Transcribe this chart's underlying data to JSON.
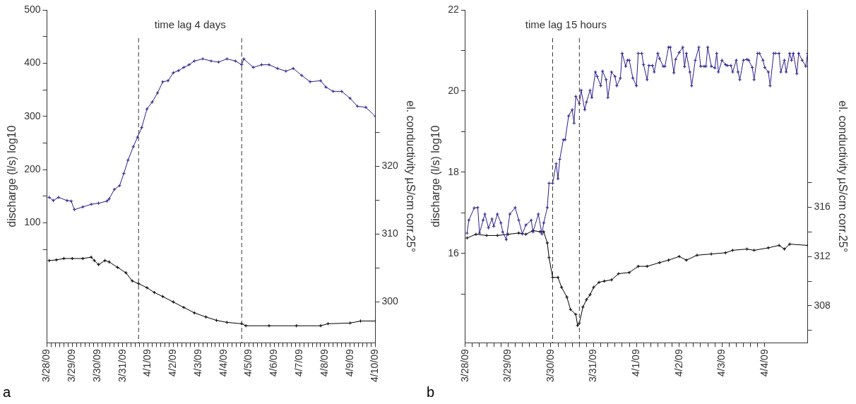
{
  "chart_data": [
    {
      "type": "line",
      "title": "a",
      "ylabel": "discharge (l/s) log10",
      "y2label": "el. conductivity µS/cm corr.25°",
      "annotations": [
        "time lag 4 days"
      ],
      "marker": "cross",
      "xlim": [
        "--03-28",
        "--04-10"
      ],
      "xticks": [
        {
          "value": "--03-28",
          "label": "3/28/09"
        },
        {
          "value": "--03-28T04:00",
          "label": null
        },
        {
          "value": "--03-28T08:00",
          "label": null
        },
        {
          "value": "--03-28T12:00",
          "label": null
        },
        {
          "value": "--03-28T16:00",
          "label": null
        },
        {
          "value": "--03-28T20:00",
          "label": null
        },
        {
          "value": "--03-29",
          "label": "3/29/09"
        },
        {
          "value": "--03-29T04:00",
          "label": null
        },
        {
          "value": "--03-29T08:00",
          "label": null
        },
        {
          "value": "--03-29T12:00",
          "label": null
        },
        {
          "value": "--03-29T16:00",
          "label": null
        },
        {
          "value": "--03-29T20:00",
          "label": null
        },
        {
          "value": "--03-30",
          "label": "3/30/09"
        },
        {
          "value": "--03-30T04:00",
          "label": null
        },
        {
          "value": "--03-30T08:00",
          "label": null
        },
        {
          "value": "--03-30T12:00",
          "label": null
        },
        {
          "value": "--03-30T16:00",
          "label": null
        },
        {
          "value": "--03-30T20:00",
          "label": null
        },
        {
          "value": "--03-31",
          "label": "3/31/09"
        },
        {
          "value": "--03-31T04:00",
          "label": null
        },
        {
          "value": "--03-31T08:00",
          "label": null
        },
        {
          "value": "--03-31T12:00",
          "label": null
        },
        {
          "value": "--03-31T16:00",
          "label": null
        },
        {
          "value": "--03-31T20:00",
          "label": null
        },
        {
          "value": "--04-01",
          "label": "4/1/09"
        },
        {
          "value": "--04-01T04:00",
          "label": null
        },
        {
          "value": "--04-01T08:00",
          "label": null
        },
        {
          "value": "--04-01T12:00",
          "label": null
        },
        {
          "value": "--04-01T16:00",
          "label": null
        },
        {
          "value": "--04-01T20:00",
          "label": null
        },
        {
          "value": "--04-02",
          "label": "4/2/09"
        },
        {
          "value": "--04-02T04:00",
          "label": null
        },
        {
          "value": "--04-02T08:00",
          "label": null
        },
        {
          "value": "--04-02T12:00",
          "label": null
        },
        {
          "value": "--04-02T16:00",
          "label": null
        },
        {
          "value": "--04-02T20:00",
          "label": null
        },
        {
          "value": "--04-03",
          "label": "4/3/09"
        },
        {
          "value": "--04-03T04:00",
          "label": null
        },
        {
          "value": "--04-03T08:00",
          "label": null
        },
        {
          "value": "--04-03T12:00",
          "label": null
        },
        {
          "value": "--04-03T16:00",
          "label": null
        },
        {
          "value": "--04-03T20:00",
          "label": null
        },
        {
          "value": "--04-04",
          "label": "4/4/09"
        },
        {
          "value": "--04-04T04:00",
          "label": null
        },
        {
          "value": "--04-04T08:00",
          "label": null
        },
        {
          "value": "--04-04T12:00",
          "label": null
        },
        {
          "value": "--04-04T16:00",
          "label": null
        },
        {
          "value": "--04-04T20:00",
          "label": null
        },
        {
          "value": "--04-05",
          "label": "4/5/09"
        },
        {
          "value": "--04-05T04:00",
          "label": null
        },
        {
          "value": "--04-05T08:00",
          "label": null
        },
        {
          "value": "--04-05T12:00",
          "label": null
        },
        {
          "value": "--04-05T16:00",
          "label": null
        },
        {
          "value": "--04-05T20:00",
          "label": null
        },
        {
          "value": "--04-06",
          "label": "4/6/09"
        },
        {
          "value": "--04-06T04:00",
          "label": null
        },
        {
          "value": "--04-06T08:00",
          "label": null
        },
        {
          "value": "--04-06T12:00",
          "label": null
        },
        {
          "value": "--04-06T16:00",
          "label": null
        },
        {
          "value": "--04-06T20:00",
          "label": null
        },
        {
          "value": "--04-07",
          "label": "4/7/09"
        },
        {
          "value": "--04-07T04:00",
          "label": null
        },
        {
          "value": "--04-07T08:00",
          "label": null
        },
        {
          "value": "--04-07T12:00",
          "label": null
        },
        {
          "value": "--04-07T16:00",
          "label": null
        },
        {
          "value": "--04-07T20:00",
          "label": null
        },
        {
          "value": "--04-08",
          "label": "4/8/09"
        },
        {
          "value": "--04-08T04:00",
          "label": null
        },
        {
          "value": "--04-08T08:00",
          "label": null
        },
        {
          "value": "--04-08T12:00",
          "label": null
        },
        {
          "value": "--04-08T16:00",
          "label": null
        },
        {
          "value": "--04-08T20:00",
          "label": null
        },
        {
          "value": "--04-09",
          "label": "4/9/09"
        },
        {
          "value": "--04-09T04:00",
          "label": null
        },
        {
          "value": "--04-09T08:00",
          "label": null
        },
        {
          "value": "--04-09T12:00",
          "label": null
        },
        {
          "value": "--04-09T16:00",
          "label": null
        },
        {
          "value": "--04-09T20:00",
          "label": null
        },
        {
          "value": "--04-10",
          "label": "4/10/09"
        }
      ],
      "ylim": [
        -125,
        500
      ],
      "yticks": [
        {
          "value": 50,
          "label": null
        },
        100,
        {
          "value": 150,
          "label": null
        },
        200,
        {
          "value": 250,
          "label": null
        },
        300,
        {
          "value": 350,
          "label": null
        },
        400,
        {
          "value": 450,
          "label": null
        },
        500
      ],
      "y2lim": [
        294,
        343
      ],
      "y2ticks": [
        300,
        {
          "value": 305,
          "label": null
        },
        310,
        {
          "value": 315,
          "label": null
        },
        320,
        {
          "value": 325,
          "label": null
        }
      ],
      "ref_lines": [
        {
          "axis": "x",
          "value": "--03-31T15:00",
          "color": "#333333",
          "line_style": "dashed"
        },
        {
          "axis": "x",
          "value": "--04-04T17:00",
          "color": "#333333",
          "line_style": "dashed"
        }
      ],
      "series": [
        {
          "color": "#2b1f8f",
          "x": [
            "--03-28T02:00",
            "--03-28T06:00",
            "--03-28T11:00",
            "--03-28T19:00",
            "--03-28T23:00",
            "--03-29T02:00",
            "--03-29T10:00",
            "--03-29T18:00",
            "--03-30T01:00",
            "--03-30T09:00",
            "--03-30T11:00",
            "--03-30T16:00",
            "--03-30T21:00",
            "--03-31T01:00",
            "--03-31T05:00",
            "--03-31T10:00",
            "--03-31T14:00",
            "--03-31T18:00",
            "--03-31T23:00",
            "--04-01T04:00",
            "--04-01T09:00",
            "--04-01T14:00",
            "--04-01T19:00",
            "--04-02T00:00",
            "--04-02T05:00",
            "--04-02T10:00",
            "--04-02T15:00",
            "--04-02T20:00",
            "--04-03T04:00",
            "--04-03T12:00",
            "--04-03T19:00",
            "--04-04T03:00",
            "--04-04T11:00",
            "--04-04T17:00",
            "--04-04T19:00",
            "--04-05T04:00",
            "--04-05T12:00",
            "--04-05T19:00",
            "--04-06T03:00",
            "--04-06T11:00",
            "--04-06T18:00",
            "--04-07T02:00",
            "--04-07T10:00",
            "--04-07T20:00",
            "--04-08T01:00",
            "--04-08T08:00",
            "--04-08T16:00",
            "--04-09T00:00",
            "--04-09T07:00",
            "--04-09T15:00",
            "--04-10T00:00"
          ],
          "values": [
            148,
            142,
            148,
            142,
            141,
            125,
            130,
            135,
            137,
            141,
            145,
            163,
            170,
            193,
            218,
            243,
            261,
            279,
            314,
            327,
            344,
            365,
            367,
            382,
            386,
            392,
            397,
            404,
            408,
            404,
            402,
            408,
            404,
            397,
            408,
            392,
            397,
            397,
            390,
            385,
            390,
            377,
            365,
            367,
            355,
            347,
            347,
            334,
            319,
            317,
            300
          ]
        },
        {
          "color": "#000000",
          "axis": "y2",
          "x": [
            "--03-28T02:00",
            "--03-28T09:00",
            "--03-28T16:00",
            "--03-29T00:00",
            "--03-29T10:00",
            "--03-29T18:00",
            "--03-29T21:00",
            "--03-30T01:00",
            "--03-30T07:00",
            "--03-30T11:00",
            "--03-30T19:00",
            "--03-31T03:00",
            "--03-31T09:00",
            "--03-31T15:00",
            "--03-31T23:00",
            "--04-01T06:00",
            "--04-01T14:00",
            "--04-02T00:00",
            "--04-02T10:00",
            "--04-02T20:00",
            "--04-03T07:00",
            "--04-03T17:00",
            "--04-04T03:00",
            "--04-04T17:00",
            "--04-04T21:00",
            "--04-05T19:00",
            "--04-06T21:00",
            "--04-07T20:00",
            "--04-08T03:00",
            "--04-09T00:00",
            "--04-09T10:00",
            "--04-10T00:00"
          ],
          "values": [
            306.1,
            306.2,
            306.4,
            306.4,
            306.4,
            306.6,
            306.1,
            305.5,
            306.1,
            305.9,
            305.1,
            304.3,
            303.1,
            302.7,
            302.1,
            301.4,
            300.8,
            300.0,
            299.2,
            298.4,
            297.8,
            297.3,
            297.0,
            296.8,
            296.5,
            296.5,
            296.5,
            296.5,
            296.8,
            296.9,
            297.2,
            297.2
          ]
        }
      ]
    },
    {
      "type": "line",
      "title": "b",
      "ylabel": "discharge (l/s) log10",
      "y2label": "el. conductivity µS/cm corr.25°",
      "annotations": [
        "time lag 15 hours"
      ],
      "marker": "cross",
      "xlim": [
        "--03-28",
        "--04-05"
      ],
      "xticks": [
        {
          "value": "--03-28",
          "label": "3/28/09"
        },
        {
          "value": "--03-28T04:00",
          "label": null
        },
        {
          "value": "--03-28T08:00",
          "label": null
        },
        {
          "value": "--03-28T12:00",
          "label": null
        },
        {
          "value": "--03-28T16:00",
          "label": null
        },
        {
          "value": "--03-28T20:00",
          "label": null
        },
        {
          "value": "--03-29",
          "label": "3/29/09"
        },
        {
          "value": "--03-29T04:00",
          "label": null
        },
        {
          "value": "--03-29T08:00",
          "label": null
        },
        {
          "value": "--03-29T12:00",
          "label": null
        },
        {
          "value": "--03-29T16:00",
          "label": null
        },
        {
          "value": "--03-29T20:00",
          "label": null
        },
        {
          "value": "--03-30",
          "label": "3/30/09"
        },
        {
          "value": "--03-30T04:00",
          "label": null
        },
        {
          "value": "--03-30T08:00",
          "label": null
        },
        {
          "value": "--03-30T12:00",
          "label": null
        },
        {
          "value": "--03-30T16:00",
          "label": null
        },
        {
          "value": "--03-30T20:00",
          "label": null
        },
        {
          "value": "--03-31",
          "label": "3/31/09"
        },
        {
          "value": "--03-31T04:00",
          "label": null
        },
        {
          "value": "--03-31T08:00",
          "label": null
        },
        {
          "value": "--03-31T12:00",
          "label": null
        },
        {
          "value": "--03-31T16:00",
          "label": null
        },
        {
          "value": "--03-31T20:00",
          "label": null
        },
        {
          "value": "--04-01",
          "label": "4/1/09"
        },
        {
          "value": "--04-01T04:00",
          "label": null
        },
        {
          "value": "--04-01T08:00",
          "label": null
        },
        {
          "value": "--04-01T12:00",
          "label": null
        },
        {
          "value": "--04-01T16:00",
          "label": null
        },
        {
          "value": "--04-01T20:00",
          "label": null
        },
        {
          "value": "--04-02",
          "label": "4/2/09"
        },
        {
          "value": "--04-02T04:00",
          "label": null
        },
        {
          "value": "--04-02T08:00",
          "label": null
        },
        {
          "value": "--04-02T12:00",
          "label": null
        },
        {
          "value": "--04-02T16:00",
          "label": null
        },
        {
          "value": "--04-02T20:00",
          "label": null
        },
        {
          "value": "--04-03",
          "label": "4/3/09"
        },
        {
          "value": "--04-03T04:00",
          "label": null
        },
        {
          "value": "--04-03T08:00",
          "label": null
        },
        {
          "value": "--04-03T12:00",
          "label": null
        },
        {
          "value": "--04-03T16:00",
          "label": null
        },
        {
          "value": "--04-03T20:00",
          "label": null
        },
        {
          "value": "--04-04",
          "label": "4/4/09"
        }
      ],
      "ylim": [
        13.8,
        22
      ],
      "yticks": [
        {
          "value": 15,
          "label": null
        },
        16,
        {
          "value": 17,
          "label": null
        },
        18,
        {
          "value": 19,
          "label": null
        },
        20,
        {
          "value": 21,
          "label": null
        },
        22
      ],
      "y2lim": [
        305,
        332
      ],
      "y2ticks": [
        {
          "value": 306,
          "label": null
        },
        308,
        {
          "value": 310,
          "label": null
        },
        312,
        {
          "value": 314,
          "label": null
        },
        316,
        {
          "value": 318,
          "label": null
        }
      ],
      "ref_lines": [
        {
          "axis": "x",
          "value": "--03-30T01:00",
          "color": "#333333",
          "line_style": "dashed"
        },
        {
          "axis": "x",
          "value": "--03-30T16:00",
          "color": "#333333",
          "line_style": "dashed"
        }
      ],
      "series": [
        {
          "color": "#2b1f8f",
          "x": [
            "--03-28T01:00",
            "--03-28T02:00",
            "--03-28T05:00",
            "--03-28T07:00",
            "--03-28T08:00",
            "--03-28T10:00",
            "--03-28T11:00",
            "--03-28T13:00",
            "--03-28T15:00",
            "--03-28T16:00",
            "--03-28T18:00",
            "--03-28T20:00",
            "--03-28T21:00",
            "--03-28T23:00",
            "--03-29T01:00",
            "--03-29T04:00",
            "--03-29T06:00",
            "--03-29T08:00",
            "--03-29T10:00",
            "--03-29T13:00",
            "--03-29T14:00",
            "--03-29T17:00",
            "--03-29T19:00",
            "--03-29T20:00",
            "--03-29T22:00",
            "--03-29T23:00",
            "--03-30T01:00",
            "--03-30T03:00",
            "--03-30T04:00",
            "--03-30T05:00",
            "--03-30T07:00",
            "--03-30T08:00",
            "--03-30T10:00",
            "--03-30T12:00",
            "--03-30T13:00",
            "--03-30T14:00",
            "--03-30T16:00",
            "--03-30T17:00",
            "--03-30T19:00",
            "--03-30T20:00",
            "--03-30T22:00",
            "--03-30T23:00",
            "--03-31T01:00",
            "--03-31T02:00",
            "--03-31T04:00",
            "--03-31T05:00",
            "--03-31T07:00",
            "--03-31T08:00",
            "--03-31T10:00",
            "--03-31T12:00",
            "--03-31T13:00",
            "--03-31T15:00",
            "--03-31T16:00",
            "--03-31T18:00",
            "--03-31T19:00",
            "--03-31T20:00",
            "--03-31T22:00",
            "--04-01T00:00",
            "--04-01T01:00",
            "--04-01T03:00",
            "--04-01T04:00",
            "--04-01T06:00",
            "--04-01T07:00",
            "--04-01T09:00",
            "--04-01T10:00",
            "--04-01T12:00",
            "--04-01T13:00",
            "--04-01T15:00",
            "--04-01T16:00",
            "--04-01T18:00",
            "--04-01T19:00",
            "--04-01T21:00",
            "--04-01T22:00",
            "--04-02T00:00",
            "--04-02T02:00",
            "--04-02T03:00",
            "--04-02T04:00",
            "--04-02T06:00",
            "--04-02T07:00",
            "--04-02T09:00",
            "--04-02T11:00",
            "--04-02T12:00",
            "--04-02T14:00",
            "--04-02T15:00",
            "--04-02T16:00",
            "--04-02T18:00",
            "--04-02T20:00",
            "--04-02T21:00",
            "--04-02T22:00",
            "--04-03T00:00",
            "--04-03T02:00",
            "--04-03T03:00",
            "--04-03T05:00",
            "--04-03T06:00",
            "--04-03T08:00",
            "--04-03T09:00",
            "--04-03T10:00",
            "--04-03T12:00",
            "--04-03T14:00",
            "--04-03T15:00",
            "--04-03T17:00",
            "--04-03T18:00",
            "--04-03T20:00",
            "--04-03T21:00",
            "--04-03T23:00",
            "--04-04T00:00",
            "--04-04T02:00",
            "--04-04T03:00",
            "--04-04T05:00",
            "--04-04T06:00",
            "--04-04T08:00",
            "--04-04T09:00",
            "--04-04T11:00",
            "--04-04T12:00",
            "--04-04T14:00",
            "--04-04T15:00",
            "--04-04T16:00",
            "--04-04T18:00",
            "--04-04T19:00",
            "--04-04T21:00",
            "--04-04T23:00",
            "--04-05T00:00"
          ],
          "values": [
            16.5,
            16.82,
            17.12,
            17.13,
            16.5,
            16.82,
            16.97,
            16.63,
            16.85,
            16.67,
            16.97,
            16.75,
            16.53,
            16.34,
            16.97,
            17.13,
            16.82,
            16.48,
            16.7,
            16.82,
            16.53,
            16.97,
            16.48,
            16.75,
            17.13,
            17.73,
            17.73,
            18.21,
            17.84,
            18.32,
            18.8,
            18.8,
            19.39,
            19.54,
            19.21,
            19.87,
            19.69,
            20.02,
            19.54,
            19.73,
            20.02,
            19.84,
            20.47,
            20.36,
            20.13,
            20.49,
            20.28,
            19.84,
            20.47,
            20.36,
            20.13,
            20.32,
            20.93,
            20.61,
            20.76,
            20.76,
            20.32,
            20.13,
            20.93,
            20.93,
            20.65,
            20.28,
            20.63,
            20.63,
            20.47,
            20.93,
            20.8,
            20.61,
            20.61,
            21.08,
            21.08,
            20.45,
            20.78,
            20.95,
            21.08,
            20.6,
            20.93,
            20.47,
            20.13,
            20.76,
            21.08,
            20.61,
            20.61,
            20.61,
            21.08,
            20.61,
            20.57,
            20.93,
            20.47,
            20.76,
            20.65,
            20.63,
            20.63,
            20.47,
            20.76,
            20.47,
            20.28,
            20.76,
            20.78,
            20.76,
            20.58,
            20.28,
            20.93,
            20.93,
            20.76,
            20.58,
            20.47,
            20.13,
            20.93,
            20.93,
            20.93,
            20.47,
            20.76,
            20.47,
            20.93,
            20.76,
            20.93,
            20.43,
            20.93,
            20.76,
            20.61,
            20.93
          ]
        },
        {
          "color": "#000000",
          "axis": "y2",
          "x": [
            "--03-28T01:00",
            "--03-28T06:00",
            "--03-28T12:00",
            "--03-28T18:00",
            "--03-29T00:00",
            "--03-29T06:00",
            "--03-29T10:00",
            "--03-29T14:00",
            "--03-29T18:00",
            "--03-29T20:00",
            "--03-29T22:00",
            "--03-29T23:00",
            "--03-30T01:00",
            "--03-30T04:00",
            "--03-30T06:00",
            "--03-30T09:00",
            "--03-30T11:00",
            "--03-30T14:00",
            "--03-30T15:00",
            "--03-30T16:00",
            "--03-30T18:00",
            "--03-30T20:00",
            "--03-30T22:00",
            "--03-31T00:00",
            "--03-31T03:00",
            "--03-31T06:00",
            "--03-31T10:00",
            "--03-31T14:00",
            "--03-31T20:00",
            "--04-01T01:00",
            "--04-01T06:00",
            "--04-01T13:00",
            "--04-01T18:00",
            "--04-02T00:00",
            "--04-02T04:00",
            "--04-02T10:00",
            "--04-02T18:00",
            "--04-03T02:00",
            "--04-03T06:00",
            "--04-03T14:00",
            "--04-03T18:00",
            "--04-04T02:00",
            "--04-04T08:00",
            "--04-04T11:00",
            "--04-04T14:00",
            "--04-05T00:00"
          ],
          "values": [
            313.5,
            313.8,
            313.7,
            313.7,
            313.8,
            313.9,
            313.8,
            314.1,
            314.0,
            314.0,
            313.1,
            311.9,
            310.3,
            310.3,
            309.5,
            308.7,
            307.7,
            307.3,
            306.4,
            306.6,
            307.9,
            308.5,
            308.9,
            309.5,
            309.9,
            310.0,
            310.1,
            310.6,
            310.7,
            311.2,
            311.2,
            311.5,
            311.7,
            312.0,
            311.7,
            312.1,
            312.2,
            312.3,
            312.5,
            312.6,
            312.5,
            312.7,
            312.9,
            312.6,
            313.0,
            312.9
          ]
        }
      ]
    }
  ]
}
